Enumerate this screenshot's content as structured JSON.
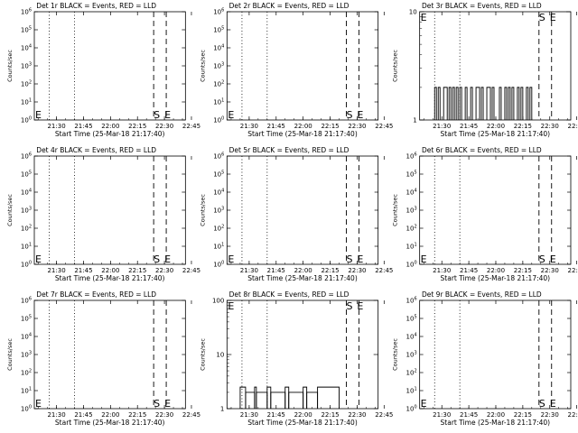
{
  "figure": {
    "x_axis_title": "Start Time (25-Mar-18 21:17:40)",
    "y_axis_title": "Counts/sec",
    "line_colors": {
      "events": "#000000",
      "lld": "#ff0000"
    }
  },
  "chart_data": [
    {
      "id": "det1",
      "type": "line",
      "title": "Det 1r BLACK = Events, RED = LLD",
      "xlabel": "Start Time (25-Mar-18 21:17:40)",
      "ylabel": "Counts/sec",
      "x_ticks": [
        "21:30",
        "21:45",
        "22:00",
        "22:15",
        "22:30",
        "22:45"
      ],
      "y_scale": "log",
      "ylim_exp": [
        0,
        6
      ],
      "y_tick_exps": [
        0,
        1,
        2,
        3,
        4,
        5,
        6
      ],
      "y_tick_style": "power",
      "markers": [
        {
          "label": "E",
          "position": "start"
        },
        {
          "label": "S",
          "position": "dashed-1"
        },
        {
          "label": "E",
          "position": "dashed-2"
        }
      ],
      "events": []
    },
    {
      "id": "det2",
      "type": "line",
      "title": "Det 2r BLACK = Events, RED = LLD",
      "xlabel": "Start Time (25-Mar-18 21:17:40)",
      "ylabel": "Counts/sec",
      "x_ticks": [
        "21:30",
        "21:45",
        "22:00",
        "22:15",
        "22:30",
        "22:45"
      ],
      "y_scale": "log",
      "ylim_exp": [
        0,
        6
      ],
      "y_tick_exps": [
        0,
        1,
        2,
        3,
        4,
        5,
        6
      ],
      "y_tick_style": "power",
      "markers": [
        {
          "label": "E",
          "position": "start"
        },
        {
          "label": "S",
          "position": "dashed-1"
        },
        {
          "label": "E",
          "position": "dashed-2"
        }
      ],
      "events": []
    },
    {
      "id": "det3",
      "type": "line",
      "title": "Det 3r BLACK = Events, RED = LLD",
      "xlabel": "Start Time (25-Mar-18 21:17:40)",
      "ylabel": "Counts/sec",
      "x_ticks": [
        "21:30",
        "21:45",
        "22:00",
        "22:15",
        "22:30",
        "22:45"
      ],
      "y_scale": "log",
      "ylim": [
        1,
        10
      ],
      "y_tick_labels": [
        "1",
        "10"
      ],
      "markers": [
        {
          "label": "E",
          "position": "start"
        },
        {
          "label": "S",
          "position": "dashed-1"
        },
        {
          "label": "E",
          "position": "dashed-2"
        }
      ],
      "events": [
        {
          "start": "21:26",
          "end": "21:27",
          "value": 2
        },
        {
          "start": "21:28",
          "end": "21:29",
          "value": 2
        },
        {
          "start": "21:31",
          "end": "21:33",
          "value": 2
        },
        {
          "start": "21:34",
          "end": "21:35",
          "value": 2
        },
        {
          "start": "21:36",
          "end": "21:37",
          "value": 2
        },
        {
          "start": "21:38",
          "end": "21:39",
          "value": 2
        },
        {
          "start": "21:40",
          "end": "21:41",
          "value": 2
        },
        {
          "start": "21:43",
          "end": "21:44",
          "value": 2
        },
        {
          "start": "21:46",
          "end": "21:47",
          "value": 2
        },
        {
          "start": "21:49",
          "end": "21:51",
          "value": 2
        },
        {
          "start": "21:52",
          "end": "21:53",
          "value": 2
        },
        {
          "start": "21:55",
          "end": "21:57",
          "value": 2
        },
        {
          "start": "21:58",
          "end": "21:59",
          "value": 2
        },
        {
          "start": "22:02",
          "end": "22:03",
          "value": 2
        },
        {
          "start": "22:05",
          "end": "22:06",
          "value": 2
        },
        {
          "start": "22:07",
          "end": "22:08",
          "value": 2
        },
        {
          "start": "22:09",
          "end": "22:10",
          "value": 2
        },
        {
          "start": "22:12",
          "end": "22:13",
          "value": 2
        },
        {
          "start": "22:14",
          "end": "22:15",
          "value": 2
        },
        {
          "start": "22:17",
          "end": "22:18",
          "value": 2
        },
        {
          "start": "22:19",
          "end": "22:20",
          "value": 2
        }
      ]
    },
    {
      "id": "det4",
      "type": "line",
      "title": "Det 4r BLACK = Events, RED = LLD",
      "xlabel": "Start Time (25-Mar-18 21:17:40)",
      "ylabel": "Counts/sec",
      "x_ticks": [
        "21:30",
        "21:45",
        "22:00",
        "22:15",
        "22:30",
        "22:45"
      ],
      "y_scale": "log",
      "ylim_exp": [
        0,
        6
      ],
      "y_tick_exps": [
        0,
        1,
        2,
        3,
        4,
        5,
        6
      ],
      "y_tick_style": "power",
      "markers": [
        {
          "label": "E",
          "position": "start"
        },
        {
          "label": "S",
          "position": "dashed-1"
        },
        {
          "label": "E",
          "position": "dashed-2"
        }
      ],
      "events": []
    },
    {
      "id": "det5",
      "type": "line",
      "title": "Det 5r BLACK = Events, RED = LLD",
      "xlabel": "Start Time (25-Mar-18 21:17:40)",
      "ylabel": "Counts/sec",
      "x_ticks": [
        "21:30",
        "21:45",
        "22:00",
        "22:15",
        "22:30",
        "22:45"
      ],
      "y_scale": "log",
      "ylim_exp": [
        0,
        6
      ],
      "y_tick_exps": [
        0,
        1,
        2,
        3,
        4,
        5,
        6
      ],
      "y_tick_style": "power",
      "markers": [
        {
          "label": "E",
          "position": "start"
        },
        {
          "label": "S",
          "position": "dashed-1"
        },
        {
          "label": "E",
          "position": "dashed-2"
        }
      ],
      "events": []
    },
    {
      "id": "det6",
      "type": "line",
      "title": "Det 6r BLACK = Events, RED = LLD",
      "xlabel": "Start Time (25-Mar-18 21:17:40)",
      "ylabel": "Counts/sec",
      "x_ticks": [
        "21:30",
        "21:45",
        "22:00",
        "22:15",
        "22:30",
        "22:45"
      ],
      "y_scale": "log",
      "ylim_exp": [
        0,
        6
      ],
      "y_tick_exps": [
        0,
        1,
        2,
        3,
        4,
        5,
        6
      ],
      "y_tick_style": "power",
      "markers": [
        {
          "label": "E",
          "position": "start"
        },
        {
          "label": "S",
          "position": "dashed-1"
        },
        {
          "label": "E",
          "position": "dashed-2"
        }
      ],
      "events": []
    },
    {
      "id": "det7",
      "type": "line",
      "title": "Det 7r BLACK = Events, RED = LLD",
      "xlabel": "Start Time (25-Mar-18 21:17:40)",
      "ylabel": "Counts/sec",
      "x_ticks": [
        "21:30",
        "21:45",
        "22:00",
        "22:15",
        "22:30",
        "22:45"
      ],
      "y_scale": "log",
      "ylim_exp": [
        0,
        6
      ],
      "y_tick_exps": [
        0,
        1,
        2,
        3,
        4,
        5,
        6
      ],
      "y_tick_style": "power",
      "markers": [
        {
          "label": "E",
          "position": "start"
        },
        {
          "label": "S",
          "position": "dashed-1"
        },
        {
          "label": "E",
          "position": "dashed-2"
        }
      ],
      "events": []
    },
    {
      "id": "det8",
      "type": "line",
      "title": "Det 8r BLACK = Events, RED = LLD",
      "xlabel": "Start Time (25-Mar-18 21:17:40)",
      "ylabel": "Counts/sec",
      "x_ticks": [
        "21:30",
        "21:45",
        "22:00",
        "22:15",
        "22:30",
        "22:45"
      ],
      "y_scale": "log",
      "ylim": [
        1,
        100
      ],
      "y_tick_labels": [
        "1",
        "10",
        "100"
      ],
      "markers": [
        {
          "label": "E",
          "position": "start"
        },
        {
          "label": "S",
          "position": "dashed-1"
        },
        {
          "label": "E",
          "position": "dashed-2"
        }
      ],
      "events": [
        {
          "start": "21:25",
          "end": "21:28",
          "value": 2.5
        },
        {
          "start": "21:28",
          "end": "21:33",
          "value": 2
        },
        {
          "start": "21:33",
          "end": "21:34",
          "value": 2.5
        },
        {
          "start": "21:34",
          "end": "21:40",
          "value": 2
        },
        {
          "start": "21:40",
          "end": "21:42",
          "value": 2.5
        },
        {
          "start": "21:42",
          "end": "21:50",
          "value": 2
        },
        {
          "start": "21:50",
          "end": "21:52",
          "value": 2.5
        },
        {
          "start": "21:52",
          "end": "22:00",
          "value": 2
        },
        {
          "start": "22:00",
          "end": "22:02",
          "value": 2.5
        },
        {
          "start": "22:02",
          "end": "22:08",
          "value": 2
        },
        {
          "start": "22:08",
          "end": "22:20",
          "value": 2.5
        }
      ]
    },
    {
      "id": "det9",
      "type": "line",
      "title": "Det 9r BLACK = Events, RED = LLD",
      "xlabel": "Start Time (25-Mar-18 21:17:40)",
      "ylabel": "Counts/sec",
      "x_ticks": [
        "21:30",
        "21:45",
        "22:00",
        "22:15",
        "22:30",
        "22:45"
      ],
      "y_scale": "log",
      "ylim_exp": [
        0,
        6
      ],
      "y_tick_exps": [
        0,
        1,
        2,
        3,
        4,
        5,
        6
      ],
      "y_tick_style": "power",
      "markers": [
        {
          "label": "E",
          "position": "start"
        },
        {
          "label": "S",
          "position": "dashed-1"
        },
        {
          "label": "E",
          "position": "dashed-2"
        }
      ],
      "events": []
    }
  ]
}
